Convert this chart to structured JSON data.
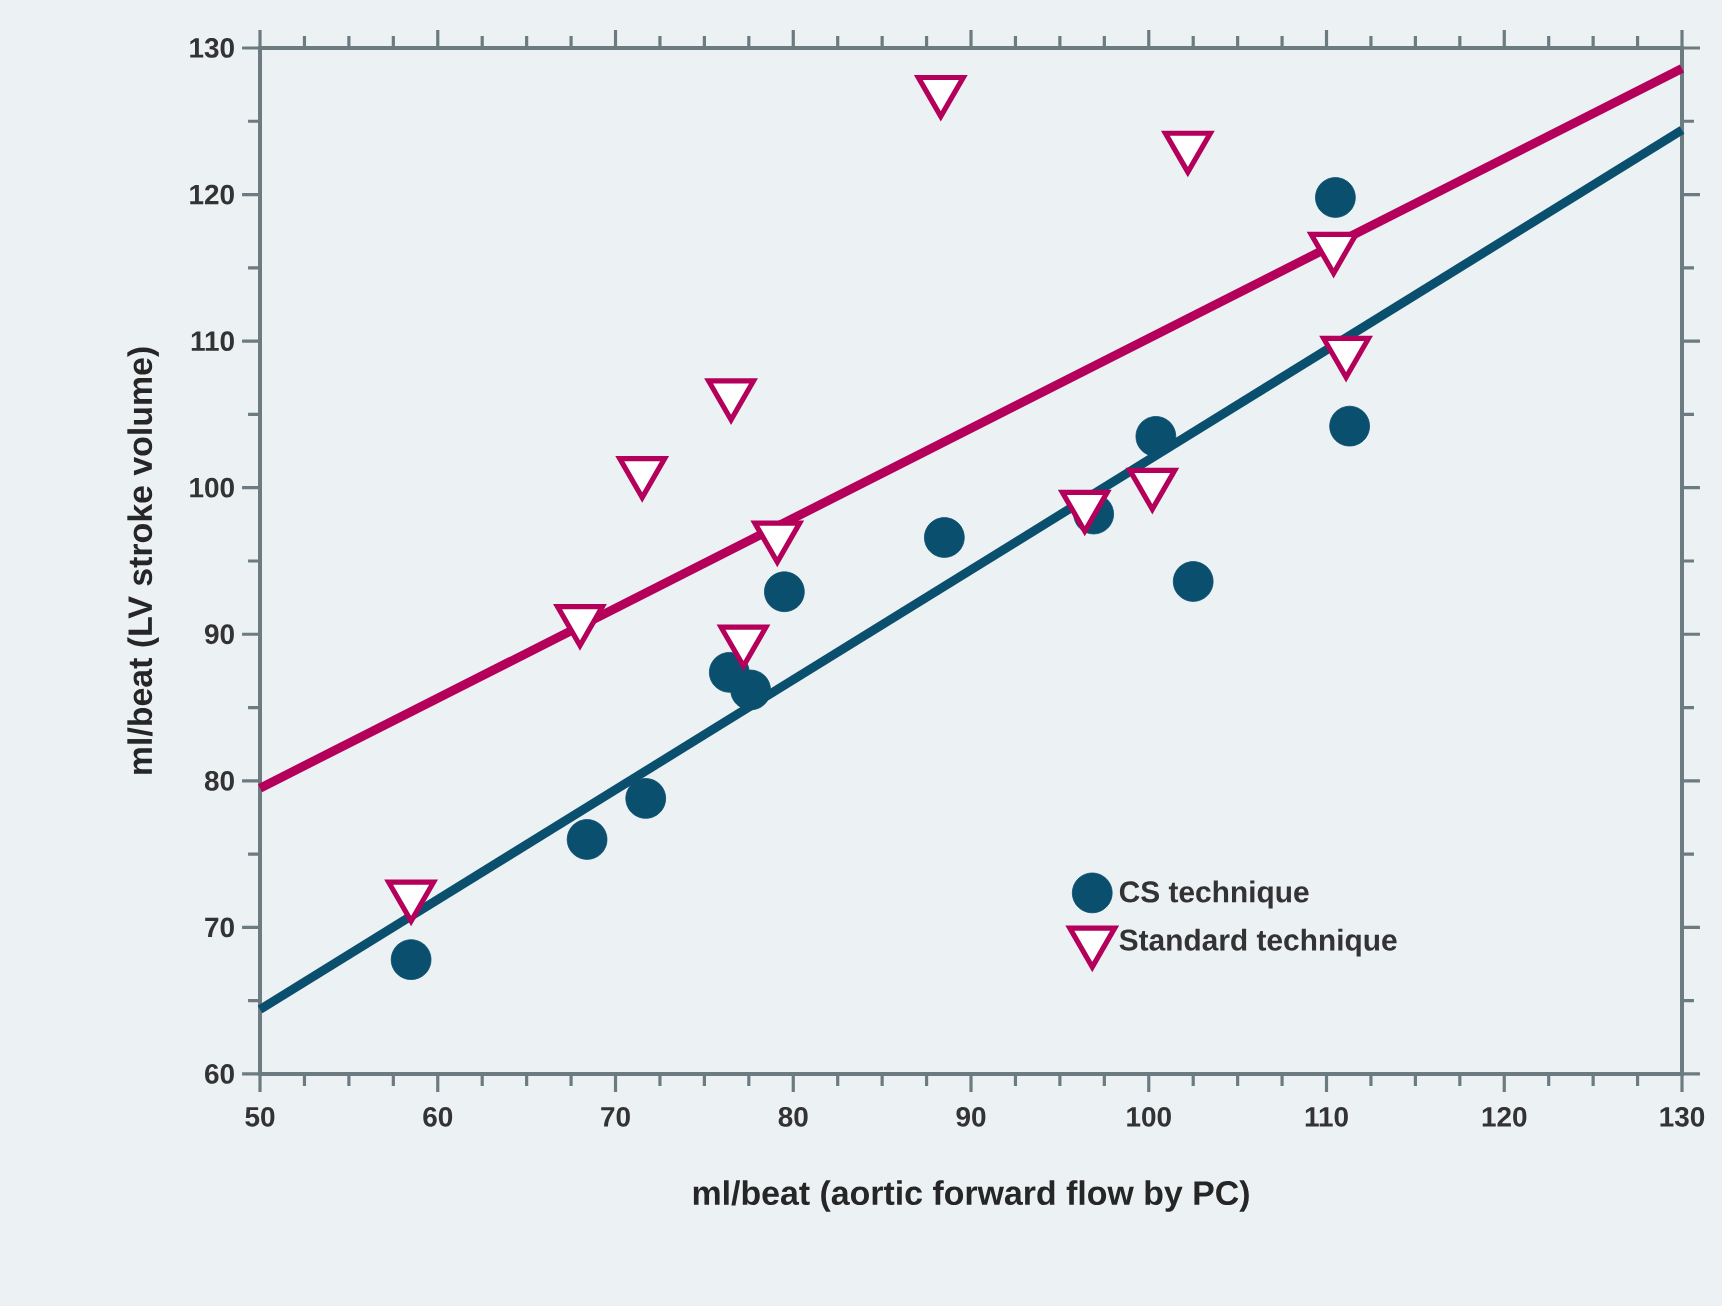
{
  "chart_data": {
    "type": "scatter",
    "xlabel": "ml/beat (aortic forward flow by PC)",
    "ylabel": "ml/beat (LV stroke volume)",
    "xlim": [
      50,
      130
    ],
    "ylim": [
      60,
      130
    ],
    "xticks": [
      50,
      60,
      70,
      80,
      90,
      100,
      110,
      120,
      130
    ],
    "yticks": [
      60,
      70,
      80,
      90,
      100,
      110,
      120,
      130
    ],
    "grid": false,
    "legend": "bottom right",
    "series": [
      {
        "name": "CS technique",
        "color": "#0a4f6e",
        "marker": "circle",
        "x": [
          58.5,
          68.4,
          71.7,
          76.4,
          77.6,
          79.5,
          88.5,
          96.9,
          100.4,
          102.5,
          110.5,
          111.3
        ],
        "values": [
          67.8,
          76.0,
          78.8,
          87.4,
          86.2,
          92.9,
          96.6,
          98.2,
          103.5,
          93.6,
          119.8,
          104.2
        ]
      },
      {
        "name": "Standard technique",
        "color": "#b5005b",
        "marker": "triangle",
        "x": [
          58.5,
          68.0,
          71.5,
          76.5,
          77.2,
          79.1,
          88.3,
          96.4,
          100.2,
          102.2,
          110.4,
          111.1
        ],
        "values": [
          72.2,
          91.0,
          101.1,
          106.4,
          89.6,
          96.7,
          127.1,
          98.8,
          100.3,
          123.3,
          116.4,
          109.3
        ]
      },
      {
        "type": "line",
        "color": "#0a4f6e",
        "line_style": "solid",
        "marker": "none",
        "x": [
          50,
          130
        ],
        "values": [
          64.4,
          124.4
        ]
      },
      {
        "type": "line",
        "color": "#b5005b",
        "line_style": "solid",
        "marker": "none",
        "x": [
          50,
          130
        ],
        "values": [
          79.5,
          128.6
        ]
      }
    ]
  }
}
